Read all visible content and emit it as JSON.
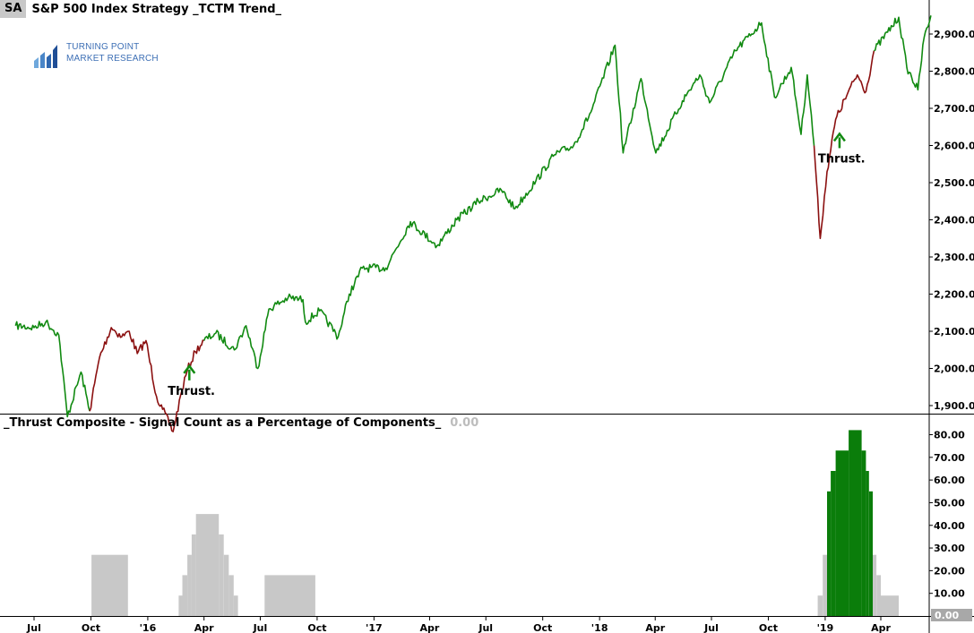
{
  "header": {
    "symbol": "SA",
    "title": "S&P 500 Index  Strategy  _TCTM Trend_"
  },
  "logo": {
    "line1": "TURNING POINT",
    "line2": "MARKET RESEARCH"
  },
  "subpanel": {
    "title": "_Thrust Composite - Signal Count as a Percentage of Components_",
    "current_value": "0.00"
  },
  "colors": {
    "up": "#118a11",
    "down": "#8b1010",
    "bar_green": "#0a7d0a",
    "bar_grey": "#c8c8c8",
    "logo": "#3d6fb5"
  },
  "chart_data": [
    {
      "type": "line",
      "name": "price",
      "ylim": [
        1840,
        2960
      ],
      "y_ticks": [
        "1,900.00",
        "2,000.00",
        "2,100.00",
        "2,200.00",
        "2,300.00",
        "2,400.00",
        "2,500.00",
        "2,600.00",
        "2,700.00",
        "2,800.00",
        "2,900.00"
      ],
      "x_ticks": [
        "Jul",
        "Oct",
        "'16",
        "Apr",
        "Jul",
        "Oct",
        "'17",
        "Apr",
        "Jul",
        "Oct",
        "'18",
        "Apr",
        "Jul",
        "Oct",
        "'19",
        "Apr"
      ],
      "x_range": [
        "2015-06",
        "2019-05"
      ],
      "annotations": [
        {
          "text": "Thrust.",
          "date": "2016-03"
        },
        {
          "text": "Thrust.",
          "date": "2019-01"
        }
      ],
      "series": [
        {
          "state": "up",
          "points": [
            [
              "2015-06-01",
              2115
            ],
            [
              "2015-07-01",
              2110
            ],
            [
              "2015-07-20",
              2125
            ],
            [
              "2015-08-10",
              2090
            ],
            [
              "2015-08-24",
              1870
            ],
            [
              "2015-09-15",
              1990
            ],
            [
              "2015-09-29",
              1885
            ]
          ]
        },
        {
          "state": "down",
          "points": [
            [
              "2015-09-29",
              1885
            ],
            [
              "2015-10-15",
              2030
            ],
            [
              "2015-11-03",
              2110
            ],
            [
              "2015-11-20",
              2085
            ],
            [
              "2015-12-02",
              2100
            ],
            [
              "2015-12-15",
              2040
            ],
            [
              "2015-12-29",
              2075
            ],
            [
              "2016-01-15",
              1925
            ],
            [
              "2016-01-25",
              1890
            ],
            [
              "2016-02-11",
              1830
            ],
            [
              "2016-02-25",
              1940
            ],
            [
              "2016-03-05",
              1995
            ],
            [
              "2016-03-18",
              2045
            ],
            [
              "2016-04-01",
              2075
            ]
          ]
        },
        {
          "state": "up",
          "points": [
            [
              "2016-04-01",
              2075
            ],
            [
              "2016-04-20",
              2095
            ],
            [
              "2016-05-20",
              2050
            ],
            [
              "2016-06-08",
              2115
            ],
            [
              "2016-06-27",
              2000
            ],
            [
              "2016-07-15",
              2160
            ],
            [
              "2016-08-15",
              2190
            ],
            [
              "2016-09-08",
              2185
            ],
            [
              "2016-09-12",
              2125
            ],
            [
              "2016-10-05",
              2155
            ],
            [
              "2016-11-04",
              2085
            ],
            [
              "2016-11-22",
              2200
            ],
            [
              "2016-12-13",
              2270
            ],
            [
              "2017-01-20",
              2270
            ],
            [
              "2017-03-01",
              2395
            ],
            [
              "2017-04-13",
              2330
            ],
            [
              "2017-05-15",
              2400
            ],
            [
              "2017-06-19",
              2450
            ],
            [
              "2017-07-26",
              2480
            ],
            [
              "2017-08-17",
              2430
            ],
            [
              "2017-09-20",
              2505
            ],
            [
              "2017-10-20",
              2575
            ],
            [
              "2017-11-20",
              2600
            ],
            [
              "2017-12-18",
              2690
            ],
            [
              "2018-01-26",
              2870
            ],
            [
              "2018-02-08",
              2580
            ],
            [
              "2018-03-09",
              2780
            ],
            [
              "2018-04-02",
              2580
            ],
            [
              "2018-05-15",
              2720
            ],
            [
              "2018-06-12",
              2790
            ],
            [
              "2018-06-28",
              2715
            ],
            [
              "2018-08-09",
              2855
            ],
            [
              "2018-09-20",
              2930
            ],
            [
              "2018-10-11",
              2730
            ],
            [
              "2018-11-07",
              2810
            ],
            [
              "2018-11-23",
              2630
            ],
            [
              "2018-12-03",
              2790
            ],
            [
              "2018-12-14",
              2600
            ]
          ]
        },
        {
          "state": "down",
          "points": [
            [
              "2018-12-14",
              2600
            ],
            [
              "2018-12-24",
              2350
            ],
            [
              "2019-01-04",
              2530
            ],
            [
              "2019-01-18",
              2670
            ],
            [
              "2019-02-05",
              2735
            ],
            [
              "2019-02-22",
              2790
            ],
            [
              "2019-03-08",
              2745
            ],
            [
              "2019-03-21",
              2855
            ]
          ]
        },
        {
          "state": "up",
          "points": [
            [
              "2019-03-21",
              2855
            ],
            [
              "2019-04-12",
              2905
            ],
            [
              "2019-04-30",
              2945
            ],
            [
              "2019-05-13",
              2810
            ],
            [
              "2019-05-31",
              2750
            ],
            [
              "2019-06-10",
              2890
            ],
            [
              "2019-06-21",
              2950
            ]
          ]
        }
      ]
    },
    {
      "type": "bar",
      "name": "Thrust Composite",
      "ylim": [
        0,
        88
      ],
      "y_ticks": [
        "10.00",
        "20.00",
        "30.00",
        "40.00",
        "50.00",
        "60.00",
        "70.00",
        "80.00",
        "0.00"
      ],
      "bars": [
        {
          "start": "2015-10-02",
          "end": "2015-11-30",
          "value": 27,
          "state": "grey"
        },
        {
          "start": "2016-02-20",
          "end": "2016-02-26",
          "value": 9,
          "state": "grey"
        },
        {
          "start": "2016-02-26",
          "end": "2016-03-05",
          "value": 18,
          "state": "grey"
        },
        {
          "start": "2016-03-05",
          "end": "2016-03-12",
          "value": 27,
          "state": "grey"
        },
        {
          "start": "2016-03-12",
          "end": "2016-03-19",
          "value": 36,
          "state": "grey"
        },
        {
          "start": "2016-03-19",
          "end": "2016-04-25",
          "value": 45,
          "state": "grey"
        },
        {
          "start": "2016-04-25",
          "end": "2016-05-03",
          "value": 36,
          "state": "grey"
        },
        {
          "start": "2016-05-03",
          "end": "2016-05-11",
          "value": 27,
          "state": "grey"
        },
        {
          "start": "2016-05-11",
          "end": "2016-05-19",
          "value": 18,
          "state": "grey"
        },
        {
          "start": "2016-05-19",
          "end": "2016-05-26",
          "value": 9,
          "state": "grey"
        },
        {
          "start": "2016-07-08",
          "end": "2016-09-28",
          "value": 18,
          "state": "grey"
        },
        {
          "start": "2018-12-20",
          "end": "2018-12-28",
          "value": 9,
          "state": "grey"
        },
        {
          "start": "2018-12-28",
          "end": "2019-01-04",
          "value": 27,
          "state": "grey"
        },
        {
          "start": "2019-01-04",
          "end": "2019-01-10",
          "value": 55,
          "state": "green"
        },
        {
          "start": "2019-01-10",
          "end": "2019-01-18",
          "value": 64,
          "state": "green"
        },
        {
          "start": "2019-01-18",
          "end": "2019-02-08",
          "value": 73,
          "state": "green"
        },
        {
          "start": "2019-02-08",
          "end": "2019-03-01",
          "value": 82,
          "state": "green"
        },
        {
          "start": "2019-03-01",
          "end": "2019-03-08",
          "value": 73,
          "state": "green"
        },
        {
          "start": "2019-03-08",
          "end": "2019-03-13",
          "value": 64,
          "state": "green"
        },
        {
          "start": "2019-03-13",
          "end": "2019-03-19",
          "value": 55,
          "state": "green"
        },
        {
          "start": "2019-03-19",
          "end": "2019-03-25",
          "value": 27,
          "state": "grey"
        },
        {
          "start": "2019-03-25",
          "end": "2019-04-01",
          "value": 18,
          "state": "grey"
        },
        {
          "start": "2019-04-01",
          "end": "2019-04-30",
          "value": 9,
          "state": "grey"
        }
      ]
    }
  ]
}
